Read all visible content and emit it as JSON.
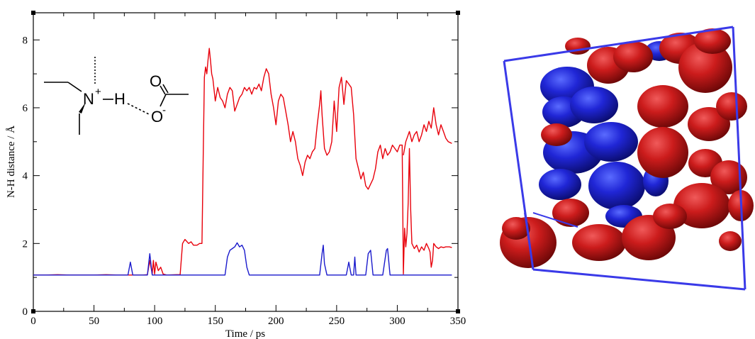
{
  "chart_data": {
    "type": "line",
    "xlabel": "Time / ps",
    "ylabel": "N-H distance / Å",
    "xlim": [
      0,
      350
    ],
    "ylim": [
      0,
      8.8
    ],
    "x_ticks": [
      0,
      50,
      100,
      150,
      200,
      250,
      300,
      350
    ],
    "y_ticks": [
      0,
      2,
      4,
      6,
      8
    ],
    "grid": false,
    "legend": "none",
    "series": [
      {
        "color": "#e8000b",
        "points": [
          [
            0,
            1.07
          ],
          [
            10,
            1.07
          ],
          [
            20,
            1.08
          ],
          [
            30,
            1.07
          ],
          [
            40,
            1.07
          ],
          [
            50,
            1.07
          ],
          [
            60,
            1.08
          ],
          [
            70,
            1.07
          ],
          [
            80,
            1.07
          ],
          [
            90,
            1.07
          ],
          [
            94,
            1.08
          ],
          [
            96,
            1.5
          ],
          [
            98,
            1.1
          ],
          [
            99,
            1.5
          ],
          [
            100,
            1.1
          ],
          [
            101,
            1.45
          ],
          [
            103,
            1.2
          ],
          [
            105,
            1.3
          ],
          [
            107,
            1.1
          ],
          [
            110,
            1.07
          ],
          [
            118,
            1.08
          ],
          [
            121,
            1.08
          ],
          [
            123,
            2.0
          ],
          [
            125,
            2.12
          ],
          [
            128,
            2.0
          ],
          [
            130,
            2.05
          ],
          [
            132,
            1.95
          ],
          [
            135,
            1.95
          ],
          [
            137,
            2.0
          ],
          [
            139,
            2.0
          ],
          [
            140,
            4.5
          ],
          [
            141,
            6.9
          ],
          [
            142,
            7.2
          ],
          [
            143,
            7.0
          ],
          [
            144,
            7.4
          ],
          [
            145,
            7.75
          ],
          [
            146,
            7.4
          ],
          [
            147,
            7.0
          ],
          [
            148,
            6.85
          ],
          [
            150,
            6.2
          ],
          [
            152,
            6.6
          ],
          [
            154,
            6.3
          ],
          [
            156,
            6.2
          ],
          [
            158,
            6.0
          ],
          [
            160,
            6.4
          ],
          [
            162,
            6.6
          ],
          [
            164,
            6.5
          ],
          [
            165,
            6.2
          ],
          [
            166,
            5.9
          ],
          [
            168,
            6.1
          ],
          [
            170,
            6.3
          ],
          [
            172,
            6.4
          ],
          [
            174,
            6.6
          ],
          [
            176,
            6.5
          ],
          [
            178,
            6.6
          ],
          [
            180,
            6.4
          ],
          [
            182,
            6.6
          ],
          [
            184,
            6.55
          ],
          [
            186,
            6.7
          ],
          [
            188,
            6.5
          ],
          [
            190,
            6.9
          ],
          [
            192,
            7.15
          ],
          [
            194,
            7.0
          ],
          [
            196,
            6.4
          ],
          [
            198,
            6.0
          ],
          [
            200,
            5.5
          ],
          [
            202,
            6.2
          ],
          [
            204,
            6.4
          ],
          [
            206,
            6.3
          ],
          [
            208,
            5.9
          ],
          [
            210,
            5.5
          ],
          [
            212,
            5.0
          ],
          [
            214,
            5.3
          ],
          [
            216,
            5.0
          ],
          [
            218,
            4.5
          ],
          [
            220,
            4.3
          ],
          [
            222,
            4.0
          ],
          [
            224,
            4.4
          ],
          [
            226,
            4.6
          ],
          [
            228,
            4.5
          ],
          [
            230,
            4.7
          ],
          [
            232,
            4.8
          ],
          [
            234,
            5.5
          ],
          [
            236,
            6.1
          ],
          [
            237,
            6.5
          ],
          [
            238,
            5.8
          ],
          [
            240,
            4.8
          ],
          [
            242,
            4.6
          ],
          [
            244,
            4.7
          ],
          [
            246,
            5.0
          ],
          [
            248,
            6.2
          ],
          [
            250,
            5.3
          ],
          [
            252,
            6.6
          ],
          [
            254,
            6.9
          ],
          [
            256,
            6.1
          ],
          [
            258,
            6.8
          ],
          [
            260,
            6.7
          ],
          [
            262,
            6.6
          ],
          [
            264,
            5.8
          ],
          [
            266,
            4.5
          ],
          [
            268,
            4.2
          ],
          [
            270,
            3.9
          ],
          [
            272,
            4.1
          ],
          [
            274,
            3.7
          ],
          [
            276,
            3.6
          ],
          [
            278,
            3.75
          ],
          [
            280,
            3.9
          ],
          [
            282,
            4.2
          ],
          [
            284,
            4.7
          ],
          [
            286,
            4.9
          ],
          [
            288,
            4.5
          ],
          [
            290,
            4.8
          ],
          [
            292,
            4.6
          ],
          [
            294,
            4.7
          ],
          [
            296,
            4.9
          ],
          [
            298,
            4.8
          ],
          [
            300,
            4.7
          ],
          [
            302,
            4.9
          ],
          [
            304,
            4.9
          ],
          [
            305,
            1.1
          ],
          [
            306,
            2.45
          ],
          [
            307,
            1.9
          ],
          [
            308,
            2.3
          ],
          [
            309,
            3.2
          ],
          [
            310,
            4.8
          ],
          [
            311,
            3.0
          ],
          [
            312,
            2.0
          ],
          [
            314,
            1.85
          ],
          [
            316,
            1.95
          ],
          [
            318,
            1.75
          ],
          [
            320,
            1.9
          ],
          [
            322,
            1.8
          ],
          [
            324,
            2.0
          ],
          [
            326,
            1.85
          ],
          [
            327,
            1.75
          ],
          [
            328,
            1.3
          ],
          [
            329,
            1.5
          ],
          [
            330,
            2.0
          ],
          [
            332,
            1.9
          ],
          [
            334,
            1.85
          ],
          [
            336,
            1.9
          ],
          [
            338,
            1.88
          ],
          [
            340,
            1.9
          ],
          [
            343,
            1.9
          ],
          [
            345,
            1.88
          ]
        ]
      },
      {
        "color": "#e8000b",
        "points": [
          [
            305,
            4.6
          ],
          [
            307,
            5.0
          ],
          [
            310,
            5.3
          ],
          [
            312,
            5.0
          ],
          [
            314,
            5.2
          ],
          [
            316,
            5.3
          ],
          [
            318,
            5.0
          ],
          [
            320,
            5.2
          ],
          [
            322,
            5.5
          ],
          [
            324,
            5.3
          ],
          [
            326,
            5.6
          ],
          [
            328,
            5.4
          ],
          [
            330,
            6.0
          ],
          [
            332,
            5.5
          ],
          [
            334,
            5.2
          ],
          [
            336,
            5.5
          ],
          [
            338,
            5.3
          ],
          [
            340,
            5.1
          ],
          [
            342,
            5.0
          ],
          [
            345,
            4.95
          ]
        ]
      },
      {
        "color": "#1a1acc",
        "points": [
          [
            0,
            1.07
          ],
          [
            78,
            1.07
          ],
          [
            80,
            1.45
          ],
          [
            82,
            1.07
          ],
          [
            94,
            1.07
          ],
          [
            96,
            1.7
          ],
          [
            98,
            1.07
          ],
          [
            158,
            1.07
          ],
          [
            160,
            1.6
          ],
          [
            162,
            1.8
          ],
          [
            164,
            1.85
          ],
          [
            166,
            1.9
          ],
          [
            168,
            2.02
          ],
          [
            170,
            1.9
          ],
          [
            172,
            1.95
          ],
          [
            174,
            1.8
          ],
          [
            176,
            1.3
          ],
          [
            178,
            1.07
          ],
          [
            236,
            1.07
          ],
          [
            238,
            1.7
          ],
          [
            239,
            1.95
          ],
          [
            240,
            1.4
          ],
          [
            242,
            1.07
          ],
          [
            258,
            1.07
          ],
          [
            260,
            1.45
          ],
          [
            262,
            1.07
          ],
          [
            264,
            1.07
          ],
          [
            265,
            1.6
          ],
          [
            266,
            1.07
          ],
          [
            274,
            1.07
          ],
          [
            276,
            1.7
          ],
          [
            278,
            1.8
          ],
          [
            280,
            1.07
          ],
          [
            288,
            1.07
          ],
          [
            291,
            1.8
          ],
          [
            292,
            1.85
          ],
          [
            294,
            1.07
          ],
          [
            345,
            1.07
          ]
        ]
      }
    ]
  },
  "molecule": {
    "atom_N": "N",
    "charge_N": "+",
    "atom_H": "H",
    "atom_O_top": "O",
    "atom_O_bottom": "O",
    "charge_O": "-"
  }
}
